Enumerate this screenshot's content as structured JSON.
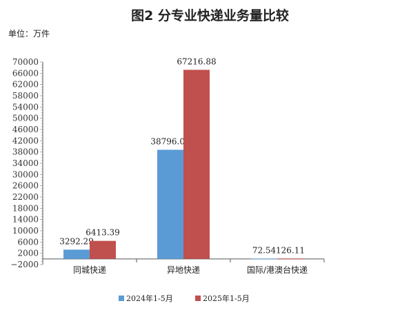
{
  "chart_data": {
    "type": "bar",
    "title": "图2 分专业快递业务量比较",
    "unit_label": "单位：万件",
    "categories": [
      "同城快递",
      "异地快递",
      "国际/港澳台快递"
    ],
    "series": [
      {
        "name": "2024年1-5月",
        "color": "#5b9bd5",
        "values": [
          3292.29,
          38796.04,
          72.54
        ],
        "labels": [
          "3292.29",
          "38796.04",
          "72.54"
        ]
      },
      {
        "name": "2025年1-5月",
        "color": "#c0504d",
        "values": [
          6413.39,
          67216.88,
          126.11
        ],
        "labels": [
          "6413.39",
          "67216.88",
          "126.11"
        ]
      }
    ],
    "ylim": [
      -2000,
      70000
    ],
    "yticks": [
      -2000,
      2000,
      6000,
      10000,
      14000,
      18000,
      22000,
      26000,
      30000,
      34000,
      38000,
      42000,
      46000,
      50000,
      54000,
      58000,
      62000,
      66000,
      70000
    ],
    "legend": "bottom",
    "grid": false
  }
}
